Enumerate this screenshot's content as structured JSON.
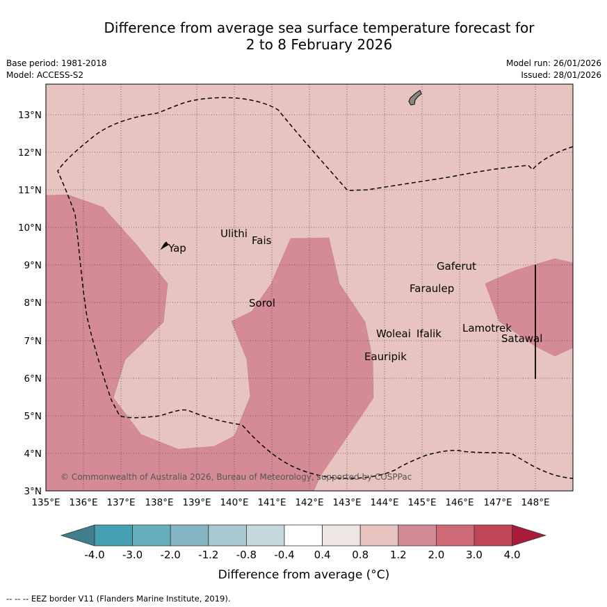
{
  "title": {
    "line1": "Difference from average sea surface temperature forecast for",
    "line2": "2 to 8 February 2026"
  },
  "meta": {
    "base_period": "Base period: 1981-2018",
    "model": "Model: ACCESS-S2",
    "model_run": "Model run: 26/01/2026",
    "issued": "Issued: 28/01/2026"
  },
  "map": {
    "lon_range": [
      135,
      149
    ],
    "lat_range": [
      3,
      13.8
    ],
    "x_ticks": [
      "135°E",
      "136°E",
      "137°E",
      "138°E",
      "139°E",
      "140°E",
      "141°E",
      "142°E",
      "143°E",
      "144°E",
      "145°E",
      "146°E",
      "147°E",
      "148°E"
    ],
    "y_ticks": [
      "3°N",
      "4°N",
      "5°N",
      "6°N",
      "7°N",
      "8°N",
      "9°N",
      "10°N",
      "11°N",
      "12°N",
      "13°N"
    ],
    "background_category": "0.8 to 1.2",
    "anomaly_category": "1.2 to 2.0",
    "places": [
      {
        "name": "Yap",
        "lon": 138.2,
        "lat": 9.5
      },
      {
        "name": "Ulithi",
        "lon": 139.6,
        "lat": 9.9
      },
      {
        "name": "Fais",
        "lon": 140.5,
        "lat": 9.7
      },
      {
        "name": "Sorol",
        "lon": 140.4,
        "lat": 8.1
      },
      {
        "name": "Gaferut",
        "lon": 145.3,
        "lat": 9.1
      },
      {
        "name": "Faraulep",
        "lon": 144.7,
        "lat": 8.5
      },
      {
        "name": "Woleai",
        "lon": 143.8,
        "lat": 7.3
      },
      {
        "name": "Ifalik",
        "lon": 144.9,
        "lat": 7.3
      },
      {
        "name": "Lamotrek",
        "lon": 146.1,
        "lat": 7.4
      },
      {
        "name": "Satawal",
        "lon": 147.0,
        "lat": 7.1
      },
      {
        "name": "Eauripik",
        "lon": 143.4,
        "lat": 6.6
      }
    ],
    "credit": "© Commonwealth of Australia 2026, Bureau of Meteorology, supported by COSPPac"
  },
  "colorbar": {
    "labels": [
      "-4.0",
      "-3.0",
      "-2.0",
      "-1.2",
      "-0.8",
      "-0.4",
      "0.4",
      "0.8",
      "1.2",
      "2.0",
      "3.0",
      "4.0"
    ],
    "colors": [
      "#3f7e8c",
      "#46a0b4",
      "#67afbf",
      "#86b5c3",
      "#a8c9d0",
      "#c8d9dd",
      "#ffffff",
      "#ede6e4",
      "#e7c4c0",
      "#d58b95",
      "#cd6a75",
      "#be4656",
      "#a81c38"
    ],
    "title": "Difference from average (°C)"
  },
  "footer": "--  --  -- EEZ border V11 (Flanders Marine Institute, 2019)."
}
